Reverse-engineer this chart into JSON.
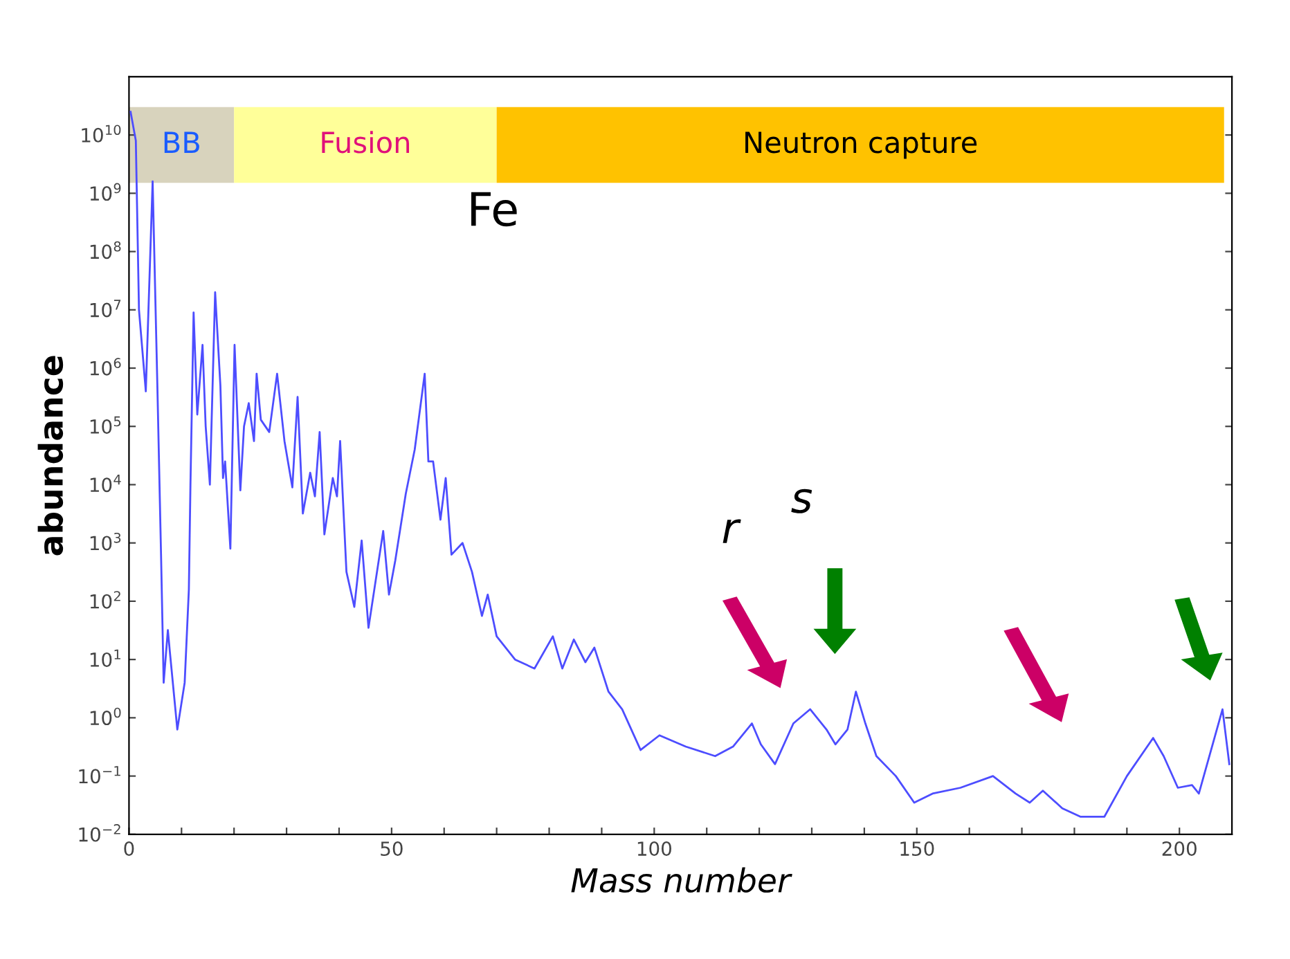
{
  "chart_data": {
    "type": "line",
    "xlabel": "Mass number",
    "ylabel": "abundance",
    "log": "y",
    "grid": false,
    "marker": "none",
    "line_style": "solid",
    "xlim": [
      0,
      210
    ],
    "ylim": [
      0.01,
      100000000000.0
    ],
    "xticks": [
      0,
      {
        "value": 10,
        "label": null
      },
      {
        "value": 20,
        "label": null
      },
      {
        "value": 30,
        "label": null
      },
      {
        "value": 40,
        "label": null
      },
      50,
      {
        "value": 60,
        "label": null
      },
      {
        "value": 70,
        "label": null
      },
      {
        "value": 80,
        "label": null
      },
      {
        "value": 90,
        "label": null
      },
      100,
      {
        "value": 110,
        "label": null
      },
      {
        "value": 120,
        "label": null
      },
      {
        "value": 130,
        "label": null
      },
      {
        "value": 140,
        "label": null
      },
      150,
      {
        "value": 160,
        "label": null
      },
      {
        "value": 170,
        "label": null
      },
      {
        "value": 180,
        "label": null
      },
      {
        "value": 190,
        "label": null
      },
      200
    ],
    "yticks": [
      {
        "value": 0.01,
        "label": "10$^{−2}$"
      },
      {
        "value": 0.1,
        "label": "10$^{−1}$"
      },
      {
        "value": 1,
        "label": "10$^{0}$"
      },
      {
        "value": 10,
        "label": "10$^{1}$"
      },
      {
        "value": 100,
        "label": "10$^{2}$"
      },
      {
        "value": 1000,
        "label": "10$^{3}$"
      },
      {
        "value": 10000,
        "label": "10$^{4}$"
      },
      {
        "value": 100000,
        "label": "10$^{5}$"
      },
      {
        "value": 1000000,
        "label": "10$^{6}$"
      },
      {
        "value": 10000000,
        "label": "10$^{7}$"
      },
      {
        "value": 100000000,
        "label": "10$^{8}$"
      },
      {
        "value": 1000000000,
        "label": "10$^{9}$"
      },
      {
        "value": 10000000000,
        "label": "10$^{10}$"
      }
    ],
    "bands": [
      {
        "axis": "x",
        "from": 0,
        "to": 20,
        "label": "BB",
        "color": "#d8d3bd"
      },
      {
        "axis": "x",
        "from": 20,
        "to": 70,
        "label": "Fusion",
        "color": "#ffff99"
      },
      {
        "axis": "x",
        "from": 70,
        "to": 208.5,
        "label": "Neutron capture",
        "color": "#ffc200"
      }
    ],
    "annotations": [
      "Fe",
      "r",
      "s"
    ],
    "series": [
      {
        "color": "#4d4dff",
        "x": [
          0.3,
          1.3,
          1.9,
          3.2,
          4.5,
          5.4,
          6.1,
          6.6,
          7.4,
          7.8,
          9.2,
          10.6,
          11.4,
          11.7,
          12.3,
          13,
          14,
          14.6,
          15.4,
          16.4,
          17.4,
          17.9,
          18.3,
          19.3,
          20.1,
          21.2,
          21.9,
          22.8,
          23.8,
          24.3,
          25.1,
          26.7,
          28.2,
          29.6,
          31.1,
          32.1,
          33.1,
          34.5,
          35.4,
          36.3,
          37.2,
          38.8,
          39.6,
          40.2,
          41.4,
          42.9,
          44.3,
          45.6,
          46.8,
          48.4,
          49.5,
          50.7,
          52.7,
          54.4,
          56.3,
          57,
          57.9,
          59.3,
          60.3,
          61.4,
          63.5,
          65.3,
          67.2,
          68.3,
          70,
          73.5,
          77.2,
          80.7,
          82.5,
          84.7,
          86.9,
          88.6,
          91.3,
          93.9,
          97.4,
          101,
          106,
          111.6,
          115,
          118.6,
          120.3,
          123,
          126.5,
          129.7,
          132.8,
          134.5,
          136.8,
          138.4,
          140.2,
          142.3,
          146,
          149.5,
          153,
          158.3,
          164.5,
          168.8,
          171.5,
          174,
          177.7,
          181.2,
          185.7,
          190,
          195,
          197,
          199.7,
          202.4,
          203.7,
          208.2,
          209.5
        ],
        "values": [
          25000000000.0,
          8000000000.0,
          10000000.0,
          400000.0,
          1600000000.0,
          500000.0,
          630,
          4,
          32,
          13,
          0.63,
          4,
          160,
          10000.0,
          9000000.0,
          160000.0,
          2500000.0,
          100000.0,
          10000.0,
          20000000.0,
          500000.0,
          13000.0,
          25000.0,
          800,
          2500000.0,
          8000.0,
          100000.0,
          250000.0,
          56000.0,
          800000.0,
          130000.0,
          80000.0,
          800000.0,
          56000.0,
          9000.0,
          320000.0,
          3200.0,
          16000.0,
          6300.0,
          80000.0,
          1400.0,
          13000.0,
          6300.0,
          56000.0,
          320,
          80,
          1100.0,
          35,
          180,
          1600.0,
          130,
          500,
          7000.0,
          40000.0,
          800000.0,
          25000.0,
          25000.0,
          2500.0,
          13000.0,
          630,
          1000.0,
          320,
          56,
          130,
          25,
          10,
          7,
          25,
          7,
          22,
          9,
          16,
          2.8,
          1.4,
          0.28,
          0.5,
          0.32,
          0.22,
          0.32,
          0.8,
          0.35,
          0.16,
          0.8,
          1.4,
          0.63,
          0.35,
          0.63,
          2.8,
          0.8,
          0.22,
          0.1,
          0.035,
          0.05,
          0.063,
          0.1,
          0.05,
          0.035,
          0.056,
          0.028,
          0.02,
          0.02,
          0.1,
          0.45,
          0.22,
          0.063,
          0.07,
          0.05,
          1.4,
          0.16
        ]
      }
    ]
  }
}
